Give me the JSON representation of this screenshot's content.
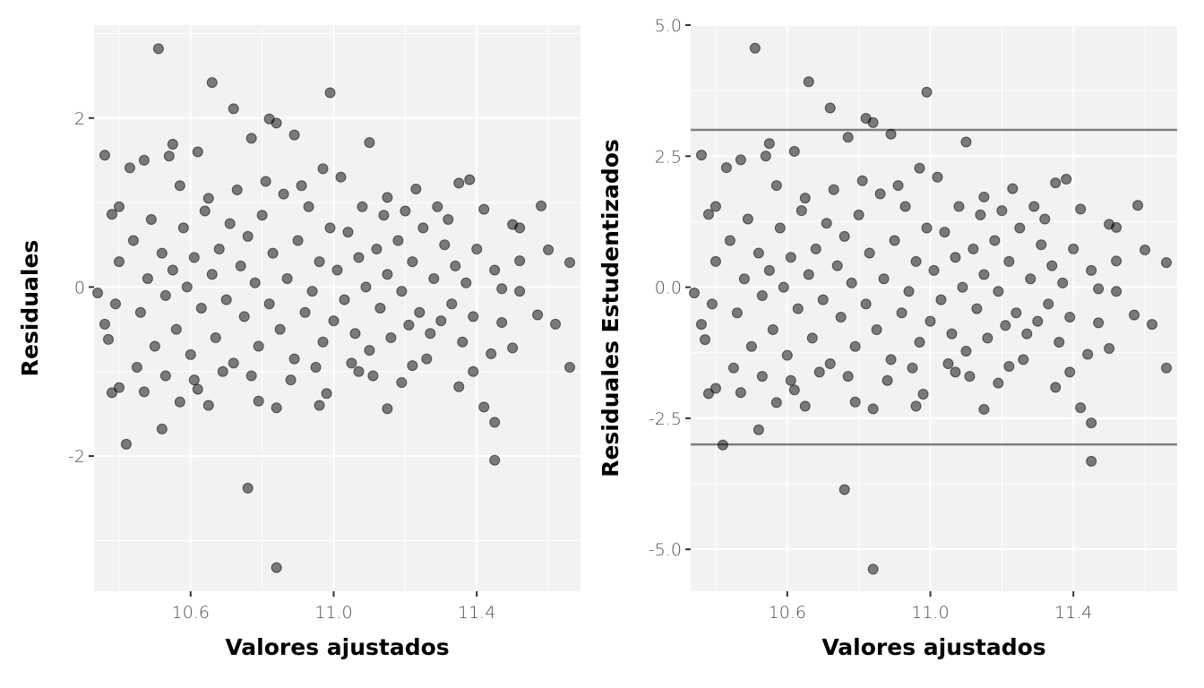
{
  "chart_data": [
    {
      "type": "scatter",
      "xlabel": "Valores ajustados",
      "ylabel": "Residuales",
      "xlim": [
        10.33,
        11.69
      ],
      "ylim": [
        -3.6,
        3.1
      ],
      "x_ticks": [
        10.6,
        11.0,
        11.4
      ],
      "x_tick_labels": [
        "10.6",
        "11.0",
        "11.4"
      ],
      "y_ticks": [
        -2,
        0,
        2
      ],
      "y_tick_labels": [
        "-2",
        "0",
        "2"
      ],
      "grid": true,
      "reference_lines": [],
      "point_color": "#000000",
      "point_alpha": 0.5,
      "points": [
        [
          10.51,
          2.82
        ],
        [
          10.66,
          2.42
        ],
        [
          10.99,
          2.3
        ],
        [
          10.72,
          2.11
        ],
        [
          10.82,
          1.99
        ],
        [
          10.77,
          1.76
        ],
        [
          10.84,
          1.94
        ],
        [
          10.89,
          1.8
        ],
        [
          11.1,
          1.71
        ],
        [
          10.55,
          1.69
        ],
        [
          10.36,
          1.56
        ],
        [
          10.54,
          1.55
        ],
        [
          10.97,
          1.4
        ],
        [
          10.43,
          1.41
        ],
        [
          10.62,
          1.6
        ],
        [
          11.02,
          1.3
        ],
        [
          11.38,
          1.27
        ],
        [
          10.47,
          1.5
        ],
        [
          11.58,
          0.96
        ],
        [
          11.35,
          1.23
        ],
        [
          11.42,
          0.92
        ],
        [
          11.5,
          0.74
        ],
        [
          11.52,
          0.7
        ],
        [
          11.29,
          0.95
        ],
        [
          11.23,
          1.16
        ],
        [
          11.15,
          1.06
        ],
        [
          10.4,
          0.95
        ],
        [
          10.38,
          0.86
        ],
        [
          11.6,
          0.44
        ],
        [
          11.66,
          0.29
        ],
        [
          11.52,
          0.31
        ],
        [
          11.45,
          0.2
        ],
        [
          11.47,
          -0.02
        ],
        [
          11.52,
          -0.05
        ],
        [
          11.62,
          -0.44
        ],
        [
          11.57,
          -0.33
        ],
        [
          11.47,
          -0.42
        ],
        [
          11.66,
          -0.95
        ],
        [
          11.5,
          -0.72
        ],
        [
          11.44,
          -0.79
        ],
        [
          11.39,
          -1.0
        ],
        [
          11.35,
          -1.18
        ],
        [
          11.42,
          -1.42
        ],
        [
          11.45,
          -1.6
        ],
        [
          11.45,
          -2.05
        ],
        [
          10.42,
          -1.86
        ],
        [
          10.52,
          -1.68
        ],
        [
          10.38,
          -1.25
        ],
        [
          10.4,
          -1.19
        ],
        [
          10.47,
          -1.24
        ],
        [
          10.57,
          -1.36
        ],
        [
          10.62,
          -1.21
        ],
        [
          10.65,
          -1.4
        ],
        [
          10.76,
          -2.38
        ],
        [
          10.84,
          -3.32
        ],
        [
          10.84,
          -1.43
        ],
        [
          10.79,
          -1.35
        ],
        [
          11.15,
          -1.44
        ],
        [
          11.22,
          -0.93
        ],
        [
          11.19,
          -1.13
        ],
        [
          11.07,
          -1.0
        ],
        [
          10.96,
          -1.4
        ],
        [
          10.98,
          -1.26
        ],
        [
          10.34,
          -0.07
        ],
        [
          10.36,
          -0.44
        ],
        [
          10.37,
          -0.62
        ],
        [
          10.39,
          -0.2
        ],
        [
          10.4,
          0.3
        ],
        [
          10.44,
          0.55
        ],
        [
          10.46,
          -0.3
        ],
        [
          10.48,
          0.1
        ],
        [
          10.5,
          -0.7
        ],
        [
          10.52,
          0.4
        ],
        [
          10.53,
          -0.1
        ],
        [
          10.55,
          0.2
        ],
        [
          10.56,
          -0.5
        ],
        [
          10.58,
          0.7
        ],
        [
          10.59,
          0.0
        ],
        [
          10.6,
          -0.8
        ],
        [
          10.61,
          0.35
        ],
        [
          10.63,
          -0.25
        ],
        [
          10.64,
          0.9
        ],
        [
          10.66,
          0.15
        ],
        [
          10.67,
          -0.6
        ],
        [
          10.68,
          0.45
        ],
        [
          10.7,
          -0.15
        ],
        [
          10.71,
          0.75
        ],
        [
          10.72,
          -0.9
        ],
        [
          10.74,
          0.25
        ],
        [
          10.75,
          -0.35
        ],
        [
          10.76,
          0.6
        ],
        [
          10.78,
          0.05
        ],
        [
          10.79,
          -0.7
        ],
        [
          10.8,
          0.85
        ],
        [
          10.82,
          -0.2
        ],
        [
          10.83,
          0.4
        ],
        [
          10.85,
          -0.5
        ],
        [
          10.86,
          1.1
        ],
        [
          10.87,
          0.1
        ],
        [
          10.89,
          -0.85
        ],
        [
          10.9,
          0.55
        ],
        [
          10.92,
          -0.3
        ],
        [
          10.93,
          0.95
        ],
        [
          10.94,
          -0.05
        ],
        [
          10.96,
          0.3
        ],
        [
          10.97,
          -0.65
        ],
        [
          10.99,
          0.7
        ],
        [
          11.0,
          -0.4
        ],
        [
          11.01,
          0.2
        ],
        [
          11.03,
          -0.15
        ],
        [
          11.04,
          0.65
        ],
        [
          11.06,
          -0.55
        ],
        [
          11.07,
          0.35
        ],
        [
          11.09,
          0.0
        ],
        [
          11.1,
          -0.75
        ],
        [
          11.12,
          0.45
        ],
        [
          11.13,
          -0.25
        ],
        [
          11.15,
          0.15
        ],
        [
          11.16,
          -0.6
        ],
        [
          11.18,
          0.55
        ],
        [
          11.19,
          -0.05
        ],
        [
          11.21,
          -0.45
        ],
        [
          11.22,
          0.3
        ],
        [
          11.24,
          -0.3
        ],
        [
          11.25,
          0.7
        ],
        [
          11.27,
          -0.55
        ],
        [
          11.28,
          0.1
        ],
        [
          11.3,
          -0.4
        ],
        [
          11.31,
          0.5
        ],
        [
          11.33,
          -0.2
        ],
        [
          11.34,
          0.25
        ],
        [
          11.36,
          -0.65
        ],
        [
          11.37,
          0.05
        ],
        [
          11.39,
          -0.35
        ],
        [
          11.4,
          0.45
        ],
        [
          10.45,
          -0.95
        ],
        [
          10.49,
          0.8
        ],
        [
          10.53,
          -1.05
        ],
        [
          10.57,
          1.2
        ],
        [
          10.61,
          -1.1
        ],
        [
          10.65,
          1.05
        ],
        [
          10.69,
          -1.0
        ],
        [
          10.73,
          1.15
        ],
        [
          10.77,
          -1.05
        ],
        [
          10.81,
          1.25
        ],
        [
          10.88,
          -1.1
        ],
        [
          10.91,
          1.2
        ],
        [
          10.95,
          -0.95
        ],
        [
          11.05,
          -0.9
        ],
        [
          11.08,
          0.95
        ],
        [
          11.11,
          -1.05
        ],
        [
          11.14,
          0.85
        ],
        [
          11.2,
          0.9
        ],
        [
          11.26,
          -0.85
        ],
        [
          11.32,
          0.8
        ]
      ]
    },
    {
      "type": "scatter",
      "xlabel": "Valores ajustados",
      "ylabel": "Residuales Estudentizados",
      "xlim": [
        10.33,
        11.69
      ],
      "ylim": [
        -5.8,
        5.0
      ],
      "x_ticks": [
        10.6,
        11.0,
        11.4
      ],
      "x_tick_labels": [
        "10.6",
        "11.0",
        "11.4"
      ],
      "y_ticks": [
        -5.0,
        -2.5,
        0.0,
        2.5,
        5.0
      ],
      "y_tick_labels": [
        "-5.0",
        "-2.5",
        "0.0",
        "2.5",
        "5.0"
      ],
      "grid": true,
      "reference_lines": [
        3,
        -3
      ],
      "point_color": "#000000",
      "point_alpha": 0.5,
      "points": [
        [
          10.51,
          4.56
        ],
        [
          10.66,
          3.92
        ],
        [
          10.99,
          3.72
        ],
        [
          10.72,
          3.42
        ],
        [
          10.82,
          3.22
        ],
        [
          10.77,
          2.86
        ],
        [
          10.84,
          3.14
        ],
        [
          10.89,
          2.92
        ],
        [
          11.1,
          2.77
        ],
        [
          10.55,
          2.74
        ],
        [
          10.36,
          2.52
        ],
        [
          10.54,
          2.5
        ],
        [
          10.97,
          2.27
        ],
        [
          10.43,
          2.28
        ],
        [
          10.62,
          2.59
        ],
        [
          11.02,
          2.1
        ],
        [
          11.38,
          2.06
        ],
        [
          10.47,
          2.43
        ],
        [
          11.58,
          1.56
        ],
        [
          11.35,
          1.99
        ],
        [
          11.42,
          1.49
        ],
        [
          11.5,
          1.2
        ],
        [
          11.52,
          1.14
        ],
        [
          11.29,
          1.54
        ],
        [
          11.23,
          1.88
        ],
        [
          11.15,
          1.72
        ],
        [
          10.4,
          1.54
        ],
        [
          10.38,
          1.39
        ],
        [
          11.6,
          0.71
        ],
        [
          11.66,
          0.47
        ],
        [
          11.52,
          0.5
        ],
        [
          11.45,
          0.32
        ],
        [
          11.47,
          -0.03
        ],
        [
          11.52,
          -0.08
        ],
        [
          11.62,
          -0.71
        ],
        [
          11.57,
          -0.53
        ],
        [
          11.47,
          -0.68
        ],
        [
          11.66,
          -1.54
        ],
        [
          11.5,
          -1.17
        ],
        [
          11.44,
          -1.28
        ],
        [
          11.39,
          -1.62
        ],
        [
          11.35,
          -1.91
        ],
        [
          11.42,
          -2.3
        ],
        [
          11.45,
          -2.59
        ],
        [
          11.45,
          -3.32
        ],
        [
          10.42,
          -3.01
        ],
        [
          10.52,
          -2.72
        ],
        [
          10.38,
          -2.03
        ],
        [
          10.4,
          -1.93
        ],
        [
          10.47,
          -2.01
        ],
        [
          10.57,
          -2.2
        ],
        [
          10.62,
          -1.96
        ],
        [
          10.65,
          -2.27
        ],
        [
          10.76,
          -3.86
        ],
        [
          10.84,
          -5.38
        ],
        [
          10.84,
          -2.32
        ],
        [
          10.79,
          -2.19
        ],
        [
          11.15,
          -2.33
        ],
        [
          11.22,
          -1.51
        ],
        [
          11.19,
          -1.83
        ],
        [
          11.07,
          -1.62
        ],
        [
          10.96,
          -2.27
        ],
        [
          10.98,
          -2.04
        ],
        [
          10.34,
          -0.11
        ],
        [
          10.36,
          -0.71
        ],
        [
          10.37,
          -1.0
        ],
        [
          10.39,
          -0.32
        ],
        [
          10.4,
          0.49
        ],
        [
          10.44,
          0.89
        ],
        [
          10.46,
          -0.49
        ],
        [
          10.48,
          0.16
        ],
        [
          10.5,
          -1.13
        ],
        [
          10.52,
          0.65
        ],
        [
          10.53,
          -0.16
        ],
        [
          10.55,
          0.32
        ],
        [
          10.56,
          -0.81
        ],
        [
          10.58,
          1.13
        ],
        [
          10.59,
          0.0
        ],
        [
          10.6,
          -1.3
        ],
        [
          10.61,
          0.57
        ],
        [
          10.63,
          -0.41
        ],
        [
          10.64,
          1.46
        ],
        [
          10.66,
          0.24
        ],
        [
          10.67,
          -0.97
        ],
        [
          10.68,
          0.73
        ],
        [
          10.7,
          -0.24
        ],
        [
          10.71,
          1.22
        ],
        [
          10.72,
          -1.46
        ],
        [
          10.74,
          0.41
        ],
        [
          10.75,
          -0.57
        ],
        [
          10.76,
          0.97
        ],
        [
          10.78,
          0.08
        ],
        [
          10.79,
          -1.13
        ],
        [
          10.8,
          1.38
        ],
        [
          10.82,
          -0.32
        ],
        [
          10.83,
          0.65
        ],
        [
          10.85,
          -0.81
        ],
        [
          10.86,
          1.78
        ],
        [
          10.87,
          0.16
        ],
        [
          10.89,
          -1.38
        ],
        [
          10.9,
          0.89
        ],
        [
          10.92,
          -0.49
        ],
        [
          10.93,
          1.54
        ],
        [
          10.94,
          -0.08
        ],
        [
          10.96,
          0.49
        ],
        [
          10.97,
          -1.05
        ],
        [
          10.99,
          1.13
        ],
        [
          11.0,
          -0.65
        ],
        [
          11.01,
          0.32
        ],
        [
          11.03,
          -0.24
        ],
        [
          11.04,
          1.05
        ],
        [
          11.06,
          -0.89
        ],
        [
          11.07,
          0.57
        ],
        [
          11.09,
          0.0
        ],
        [
          11.1,
          -1.22
        ],
        [
          11.12,
          0.73
        ],
        [
          11.13,
          -0.41
        ],
        [
          11.15,
          0.24
        ],
        [
          11.16,
          -0.97
        ],
        [
          11.18,
          0.89
        ],
        [
          11.19,
          -0.08
        ],
        [
          11.21,
          -0.73
        ],
        [
          11.22,
          0.49
        ],
        [
          11.24,
          -0.49
        ],
        [
          11.25,
          1.13
        ],
        [
          11.27,
          -0.89
        ],
        [
          11.28,
          0.16
        ],
        [
          11.3,
          -0.65
        ],
        [
          11.31,
          0.81
        ],
        [
          11.33,
          -0.32
        ],
        [
          11.34,
          0.41
        ],
        [
          11.36,
          -1.05
        ],
        [
          11.37,
          0.08
        ],
        [
          11.39,
          -0.57
        ],
        [
          11.4,
          0.73
        ],
        [
          10.45,
          -1.54
        ],
        [
          10.49,
          1.3
        ],
        [
          10.53,
          -1.7
        ],
        [
          10.57,
          1.94
        ],
        [
          10.61,
          -1.78
        ],
        [
          10.65,
          1.7
        ],
        [
          10.69,
          -1.62
        ],
        [
          10.73,
          1.86
        ],
        [
          10.77,
          -1.7
        ],
        [
          10.81,
          2.03
        ],
        [
          10.88,
          -1.78
        ],
        [
          10.91,
          1.94
        ],
        [
          10.95,
          -1.54
        ],
        [
          11.05,
          -1.46
        ],
        [
          11.08,
          1.54
        ],
        [
          11.11,
          -1.7
        ],
        [
          11.14,
          1.38
        ],
        [
          11.2,
          1.46
        ],
        [
          11.26,
          -1.38
        ],
        [
          11.32,
          1.3
        ]
      ]
    }
  ]
}
